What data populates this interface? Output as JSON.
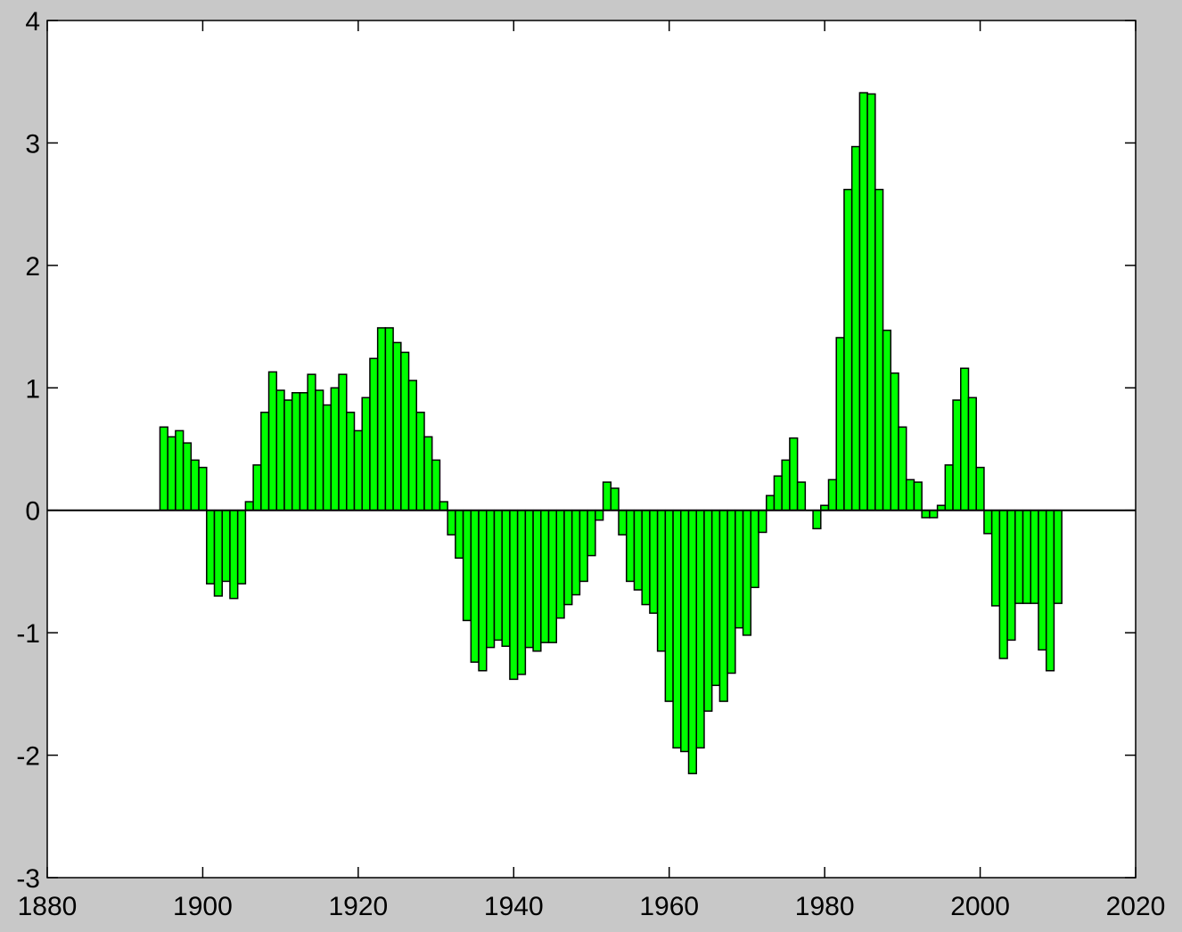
{
  "chart_data": {
    "type": "bar",
    "x": [
      1895,
      1896,
      1897,
      1898,
      1899,
      1900,
      1901,
      1902,
      1903,
      1904,
      1905,
      1906,
      1907,
      1908,
      1909,
      1910,
      1911,
      1912,
      1913,
      1914,
      1915,
      1916,
      1917,
      1918,
      1919,
      1920,
      1921,
      1922,
      1923,
      1924,
      1925,
      1926,
      1927,
      1928,
      1929,
      1930,
      1931,
      1932,
      1933,
      1934,
      1935,
      1936,
      1937,
      1938,
      1939,
      1940,
      1941,
      1942,
      1943,
      1944,
      1945,
      1946,
      1947,
      1948,
      1949,
      1950,
      1951,
      1952,
      1953,
      1954,
      1955,
      1956,
      1957,
      1958,
      1959,
      1960,
      1961,
      1962,
      1963,
      1964,
      1965,
      1966,
      1967,
      1968,
      1969,
      1970,
      1971,
      1972,
      1973,
      1974,
      1975,
      1976,
      1977,
      1978,
      1979,
      1980,
      1981,
      1982,
      1983,
      1984,
      1985,
      1986,
      1987,
      1988,
      1989,
      1990,
      1991,
      1992,
      1993,
      1994,
      1995,
      1996,
      1997,
      1998,
      1999,
      2000,
      2001,
      2002,
      2003,
      2004,
      2005,
      2006,
      2007,
      2008,
      2009,
      2010
    ],
    "values": [
      0.68,
      0.6,
      0.65,
      0.55,
      0.41,
      0.35,
      -0.6,
      -0.7,
      -0.58,
      -0.72,
      -0.6,
      0.07,
      0.37,
      0.8,
      1.13,
      0.98,
      0.9,
      0.96,
      0.96,
      1.11,
      0.98,
      0.86,
      1.0,
      1.11,
      0.8,
      0.65,
      0.92,
      1.24,
      1.49,
      1.49,
      1.37,
      1.29,
      1.06,
      0.8,
      0.6,
      0.41,
      0.07,
      -0.2,
      -0.39,
      -0.9,
      -1.24,
      -1.31,
      -1.12,
      -1.06,
      -1.11,
      -1.38,
      -1.34,
      -1.12,
      -1.15,
      -1.08,
      -1.08,
      -0.88,
      -0.77,
      -0.69,
      -0.58,
      -0.37,
      -0.08,
      0.23,
      0.18,
      -0.2,
      -0.58,
      -0.65,
      -0.77,
      -0.84,
      -1.15,
      -1.56,
      -1.94,
      -1.97,
      -2.15,
      -1.94,
      -1.64,
      -1.43,
      -1.56,
      -1.33,
      -0.96,
      -1.02,
      -0.63,
      -0.18,
      0.12,
      0.28,
      0.41,
      0.59,
      0.23,
      0,
      -0.15,
      0.04,
      0.25,
      1.41,
      2.62,
      2.97,
      3.41,
      3.4,
      2.62,
      1.47,
      1.12,
      0.68,
      0.25,
      0.23,
      -0.06,
      -0.06,
      0.04,
      0.37,
      0.9,
      1.16,
      0.92,
      0.35,
      -0.19,
      -0.78,
      -1.21,
      -1.06,
      -0.76,
      -0.76,
      -0.76,
      -1.14,
      -1.31,
      -0.76
    ],
    "color": "#00ff00",
    "xlim": [
      1880,
      2020
    ],
    "xticks": [
      1880,
      1900,
      1920,
      1940,
      1960,
      1980,
      2000,
      2020
    ],
    "ylim": [
      -3,
      4
    ],
    "yticks": [
      -3,
      -2,
      -1,
      0,
      1,
      2,
      3,
      4
    ]
  }
}
